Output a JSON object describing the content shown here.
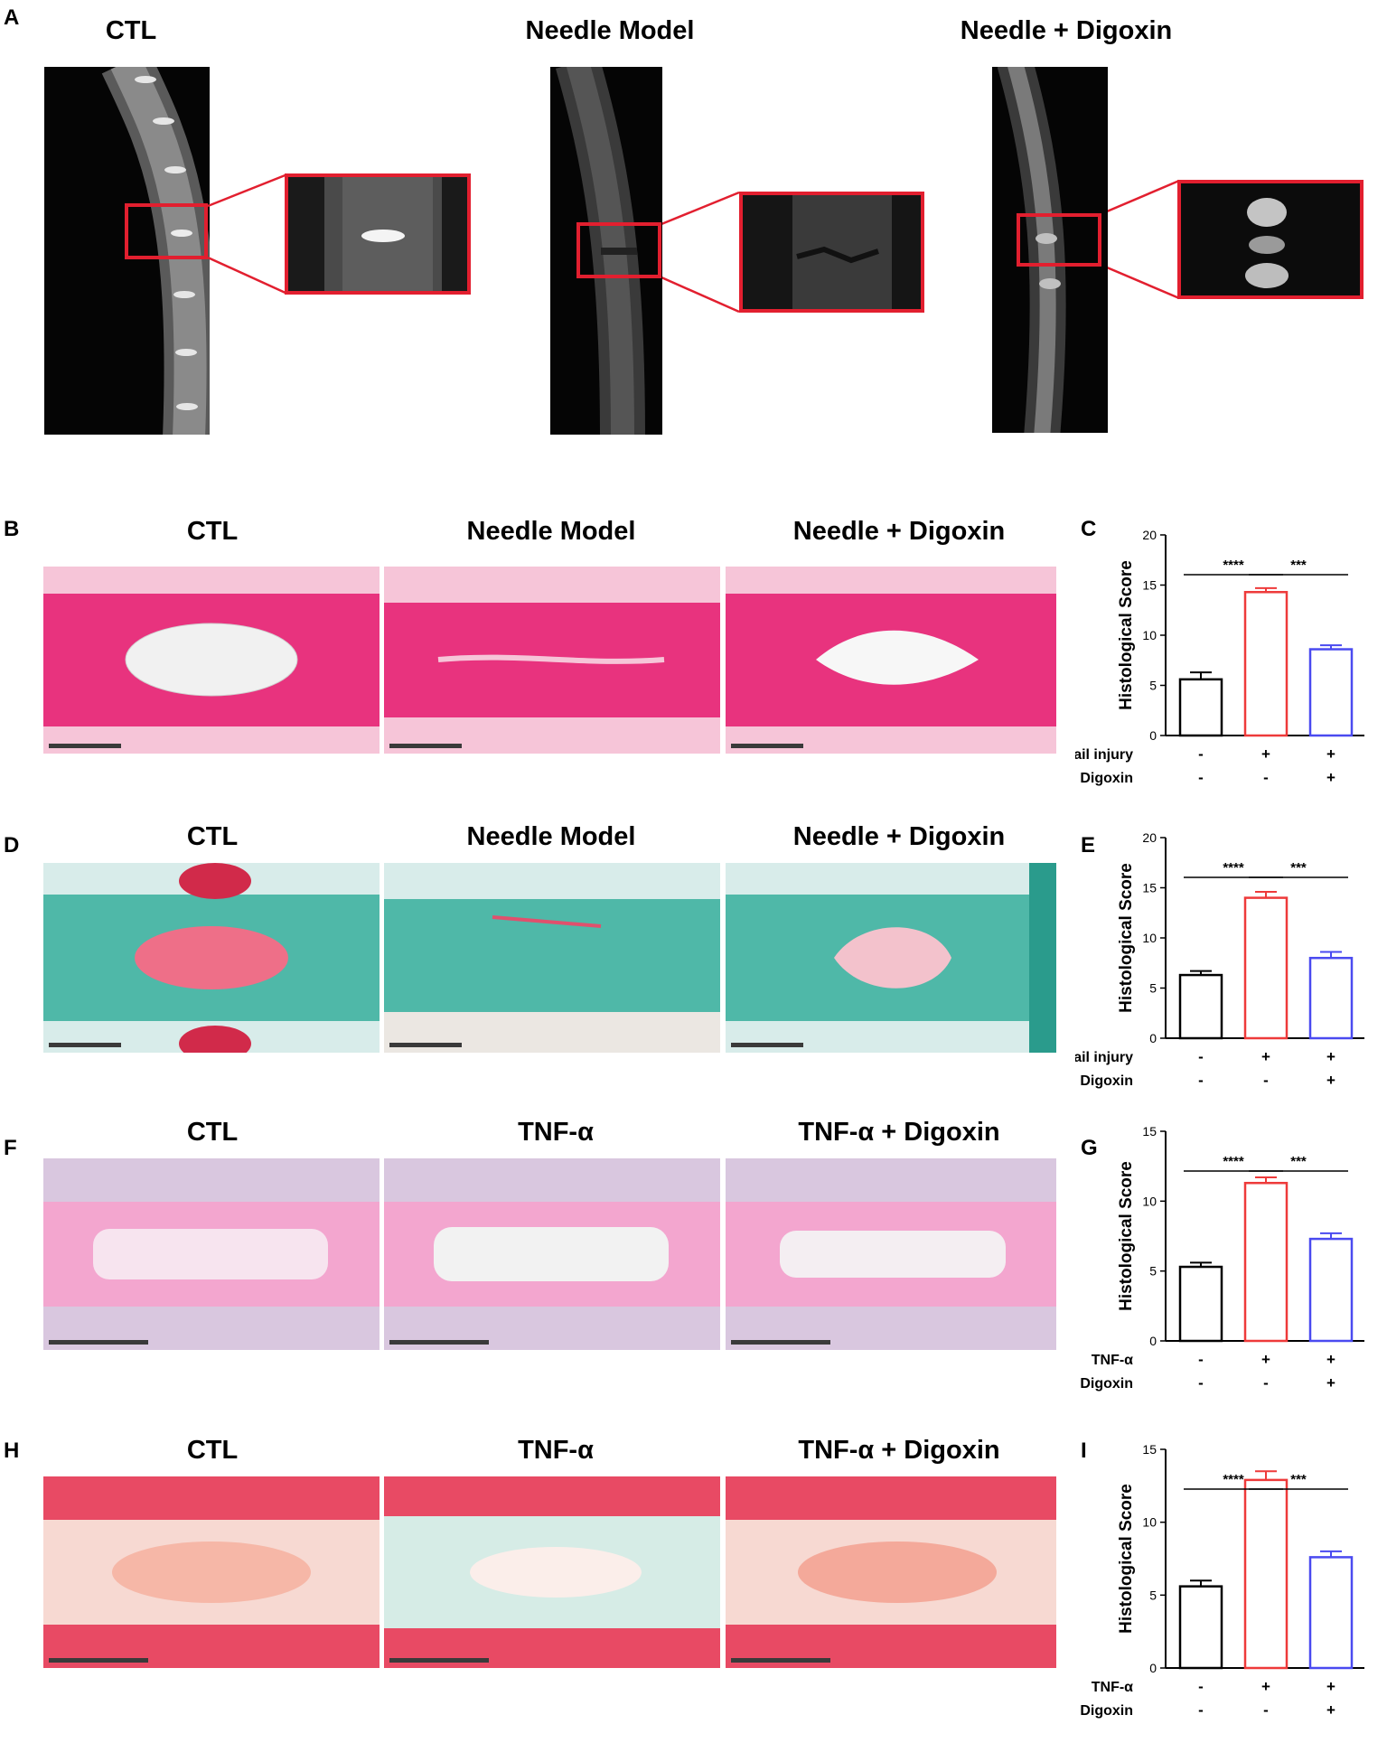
{
  "panels": [
    {
      "letter": "A",
      "titles": [
        "CTL",
        "Needle Model",
        "Needle + Digoxin"
      ]
    },
    {
      "letter": "B",
      "titles": [
        "CTL",
        "Needle Model",
        "Needle + Digoxin"
      ],
      "stain_colors": [
        "#e8337e",
        "#f6c5d8"
      ]
    },
    {
      "letter": "C"
    },
    {
      "letter": "D",
      "titles": [
        "CTL",
        "Needle Model",
        "Needle + Digoxin"
      ],
      "stain_colors": [
        "#4fb8a8",
        "#d8ecea"
      ]
    },
    {
      "letter": "E"
    },
    {
      "letter": "F",
      "titles": [
        "CTL",
        "TNF-α",
        "TNF-α + Digoxin"
      ],
      "stain_colors": [
        "#f3a6cf",
        "#f7e4ef"
      ]
    },
    {
      "letter": "G"
    },
    {
      "letter": "H",
      "titles": [
        "CTL",
        "TNF-α",
        "TNF-α + Digoxin"
      ],
      "stain_colors": [
        "#e84a64",
        "#f7d9d2"
      ]
    },
    {
      "letter": "I"
    }
  ],
  "chart_data": [
    {
      "panel": "C",
      "type": "bar",
      "ylabel": "Histological Score",
      "ylim": [
        0,
        20
      ],
      "yticks": [
        0,
        5,
        10,
        15,
        20
      ],
      "values": [
        5.6,
        14.3,
        8.6
      ],
      "errors": [
        0.7,
        0.4,
        0.4
      ],
      "colors": [
        "#000000",
        "#ee3a3a",
        "#4a4af0"
      ],
      "significance": [
        {
          "from": 0,
          "to": 1,
          "label": "****"
        },
        {
          "from": 1,
          "to": 2,
          "label": "***"
        }
      ],
      "conditions": [
        {
          "name": "Tail injury",
          "marks": [
            "-",
            "+",
            "+"
          ]
        },
        {
          "name": "Digoxin",
          "marks": [
            "-",
            "-",
            "+"
          ]
        }
      ]
    },
    {
      "panel": "E",
      "type": "bar",
      "ylabel": "Histological Score",
      "ylim": [
        0,
        20
      ],
      "yticks": [
        0,
        5,
        10,
        15,
        20
      ],
      "values": [
        6.3,
        14.0,
        8.0
      ],
      "errors": [
        0.4,
        0.6,
        0.6
      ],
      "colors": [
        "#000000",
        "#ee3a3a",
        "#4a4af0"
      ],
      "significance": [
        {
          "from": 0,
          "to": 1,
          "label": "****"
        },
        {
          "from": 1,
          "to": 2,
          "label": "***"
        }
      ],
      "conditions": [
        {
          "name": "Tail injury",
          "marks": [
            "-",
            "+",
            "+"
          ]
        },
        {
          "name": "Digoxin",
          "marks": [
            "-",
            "-",
            "+"
          ]
        }
      ]
    },
    {
      "panel": "G",
      "type": "bar",
      "ylabel": "Histological Score",
      "ylim": [
        0,
        15
      ],
      "yticks": [
        0,
        5,
        10,
        15
      ],
      "values": [
        5.3,
        11.3,
        7.3
      ],
      "errors": [
        0.3,
        0.4,
        0.4
      ],
      "colors": [
        "#000000",
        "#ee3a3a",
        "#4a4af0"
      ],
      "significance": [
        {
          "from": 0,
          "to": 1,
          "label": "****"
        },
        {
          "from": 1,
          "to": 2,
          "label": "***"
        }
      ],
      "conditions": [
        {
          "name": "TNF-α",
          "marks": [
            "-",
            "+",
            "+"
          ]
        },
        {
          "name": "Digoxin",
          "marks": [
            "-",
            "-",
            "+"
          ]
        }
      ]
    },
    {
      "panel": "I",
      "type": "bar",
      "ylabel": "Histological Score",
      "ylim": [
        0,
        15
      ],
      "yticks": [
        0,
        5,
        10,
        15
      ],
      "values": [
        5.6,
        12.9,
        7.6
      ],
      "errors": [
        0.4,
        0.6,
        0.4
      ],
      "colors": [
        "#000000",
        "#ee3a3a",
        "#4a4af0"
      ],
      "significance": [
        {
          "from": 0,
          "to": 1,
          "label": "****"
        },
        {
          "from": 1,
          "to": 2,
          "label": "***"
        }
      ],
      "conditions": [
        {
          "name": "TNF-α",
          "marks": [
            "-",
            "+",
            "+"
          ]
        },
        {
          "name": "Digoxin",
          "marks": [
            "-",
            "-",
            "+"
          ]
        }
      ]
    }
  ]
}
